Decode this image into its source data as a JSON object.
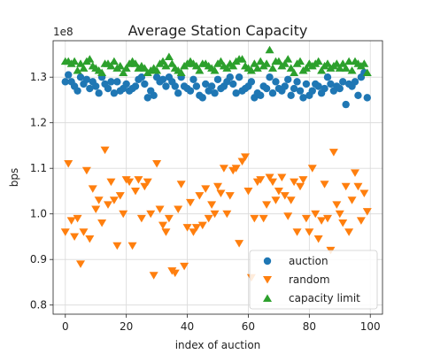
{
  "chart_data": {
    "type": "scatter",
    "title": "Average Station Capacity",
    "xlabel": "index of auction",
    "ylabel": "bps",
    "y_offset_label": "1e8",
    "xlim": [
      -4,
      104
    ],
    "ylim": [
      78000000.0,
      138000000.0
    ],
    "x_ticks": [
      0,
      20,
      40,
      60,
      80,
      100
    ],
    "x_tick_labels": [
      "0",
      "20",
      "40",
      "60",
      "80",
      "100"
    ],
    "y_ticks": [
      80000000.0,
      90000000.0,
      100000000.0,
      110000000.0,
      120000000.0,
      130000000.0
    ],
    "y_tick_labels": [
      "0.8",
      "0.9",
      "1.0",
      "1.1",
      "1.2",
      "1.3"
    ],
    "grid": true,
    "legend_position": "lower-right",
    "series": [
      {
        "name": "auction",
        "marker": "circle",
        "color": "#1f77b4",
        "x": [
          0,
          1,
          2,
          3,
          4,
          5,
          6,
          7,
          8,
          9,
          10,
          11,
          12,
          13,
          14,
          15,
          16,
          17,
          18,
          19,
          20,
          21,
          22,
          23,
          24,
          25,
          26,
          27,
          28,
          29,
          30,
          31,
          32,
          33,
          34,
          35,
          36,
          37,
          38,
          39,
          40,
          41,
          42,
          43,
          44,
          45,
          46,
          47,
          48,
          49,
          50,
          51,
          52,
          53,
          54,
          55,
          56,
          57,
          58,
          59,
          60,
          61,
          62,
          63,
          64,
          65,
          66,
          67,
          68,
          69,
          70,
          71,
          72,
          73,
          74,
          75,
          76,
          77,
          78,
          79,
          80,
          81,
          82,
          83,
          84,
          85,
          86,
          87,
          88,
          89,
          90,
          91,
          92,
          93,
          94,
          95,
          96,
          97,
          98,
          99
        ],
        "y": [
          129000000.0,
          130500000.0,
          129000000.0,
          128000000.0,
          127000000.0,
          130000000.0,
          128500000.0,
          129500000.0,
          127500000.0,
          129000000.0,
          128000000.0,
          126500000.0,
          130000000.0,
          128500000.0,
          127500000.0,
          129000000.0,
          126500000.0,
          129000000.0,
          127000000.0,
          127500000.0,
          128500000.0,
          127000000.0,
          127500000.0,
          128000000.0,
          129500000.0,
          130000000.0,
          128500000.0,
          125500000.0,
          127000000.0,
          126000000.0,
          130000000.0,
          129000000.0,
          129500000.0,
          128000000.0,
          130000000.0,
          129000000.0,
          128000000.0,
          126500000.0,
          130000000.0,
          128000000.0,
          127500000.0,
          127000000.0,
          129500000.0,
          128000000.0,
          126000000.0,
          125500000.0,
          128500000.0,
          127000000.0,
          128000000.0,
          126500000.0,
          129500000.0,
          127500000.0,
          128000000.0,
          129000000.0,
          130000000.0,
          128500000.0,
          126500000.0,
          130000000.0,
          127000000.0,
          127500000.0,
          128000000.0,
          129000000.0,
          125500000.0,
          126500000.0,
          126000000.0,
          128000000.0,
          127500000.0,
          130000000.0,
          126500000.0,
          129000000.0,
          127500000.0,
          127000000.0,
          128000000.0,
          129500000.0,
          126000000.0,
          127500000.0,
          129000000.0,
          127000000.0,
          125500000.0,
          128500000.0,
          126000000.0,
          127000000.0,
          128500000.0,
          128000000.0,
          126500000.0,
          127500000.0,
          130000000.0,
          128500000.0,
          127000000.0,
          128000000.0,
          127500000.0,
          129000000.0,
          124000000.0,
          128500000.0,
          128000000.0,
          129000000.0,
          126000000.0,
          130000000.0,
          131000000.0,
          125500000.0
        ]
      },
      {
        "name": "random",
        "marker": "triangle-down",
        "color": "#ff7f0e",
        "x": [
          0,
          1,
          2,
          3,
          4,
          5,
          6,
          7,
          8,
          9,
          10,
          11,
          12,
          13,
          14,
          15,
          16,
          17,
          18,
          19,
          20,
          21,
          22,
          23,
          24,
          25,
          26,
          27,
          28,
          29,
          30,
          31,
          32,
          33,
          34,
          35,
          36,
          37,
          38,
          39,
          40,
          41,
          42,
          43,
          44,
          45,
          46,
          47,
          48,
          49,
          50,
          51,
          52,
          53,
          54,
          55,
          56,
          57,
          58,
          59,
          60,
          61,
          62,
          63,
          64,
          65,
          66,
          67,
          68,
          69,
          70,
          71,
          72,
          73,
          74,
          75,
          76,
          77,
          78,
          79,
          80,
          81,
          82,
          83,
          84,
          85,
          86,
          87,
          88,
          89,
          90,
          91,
          92,
          93,
          94,
          95,
          96,
          97,
          98,
          99
        ],
        "y": [
          96000000.0,
          111000000.0,
          98500000.0,
          95000000.0,
          99000000.0,
          89000000.0,
          96000000.0,
          109500000.0,
          94500000.0,
          105500000.0,
          101000000.0,
          103000000.0,
          98000000.0,
          114000000.0,
          102000000.0,
          107000000.0,
          103000000.0,
          93000000.0,
          104000000.0,
          100000000.0,
          107500000.0,
          107000000.0,
          93000000.0,
          105000000.0,
          107500000.0,
          99000000.0,
          106000000.0,
          107000000.0,
          100000000.0,
          86500000.0,
          111000000.0,
          101000000.0,
          97500000.0,
          96000000.0,
          99000000.0,
          87500000.0,
          87000000.0,
          101000000.0,
          106500000.0,
          88500000.0,
          97000000.0,
          102500000.0,
          96000000.0,
          97000000.0,
          104000000.0,
          97500000.0,
          105500000.0,
          99000000.0,
          102000000.0,
          100000000.0,
          106000000.0,
          104500000.0,
          110000000.0,
          100000000.0,
          104000000.0,
          109500000.0,
          110000000.0,
          93500000.0,
          111500000.0,
          112500000.0,
          105000000.0,
          86000000.0,
          99000000.0,
          107000000.0,
          107500000.0,
          99000000.0,
          102000000.0,
          108000000.0,
          107000000.0,
          103000000.0,
          105000000.0,
          108000000.0,
          104000000.0,
          99500000.0,
          103000000.0,
          107000000.0,
          96000000.0,
          106000000.0,
          107500000.0,
          99000000.0,
          96000000.0,
          110000000.0,
          100000000.0,
          94500000.0,
          98500000.0,
          106500000.0,
          99000000.0,
          92000000.0,
          113500000.0,
          102000000.0,
          100000000.0,
          98000000.0,
          106000000.0,
          96000000.0,
          103000000.0,
          109000000.0,
          106000000.0,
          98500000.0,
          104500000.0,
          100500000.0
        ]
      },
      {
        "name": "capacity limit",
        "marker": "triangle-up",
        "color": "#2ca02c",
        "x": [
          0,
          1,
          2,
          3,
          4,
          5,
          6,
          7,
          8,
          9,
          10,
          11,
          12,
          13,
          14,
          15,
          16,
          17,
          18,
          19,
          20,
          21,
          22,
          23,
          24,
          25,
          26,
          27,
          28,
          29,
          30,
          31,
          32,
          33,
          34,
          35,
          36,
          37,
          38,
          39,
          40,
          41,
          42,
          43,
          44,
          45,
          46,
          47,
          48,
          49,
          50,
          51,
          52,
          53,
          54,
          55,
          56,
          57,
          58,
          59,
          60,
          61,
          62,
          63,
          64,
          65,
          66,
          67,
          68,
          69,
          70,
          71,
          72,
          73,
          74,
          75,
          76,
          77,
          78,
          79,
          80,
          81,
          82,
          83,
          84,
          85,
          86,
          87,
          88,
          89,
          90,
          91,
          92,
          93,
          94,
          95,
          96,
          97,
          98,
          99
        ],
        "y": [
          133500000.0,
          133500000.0,
          133000000.0,
          133500000.0,
          131500000.0,
          133000000.0,
          132000000.0,
          133500000.0,
          134000000.0,
          132500000.0,
          132000000.0,
          131500000.0,
          131000000.0,
          133000000.0,
          133000000.0,
          132500000.0,
          133500000.0,
          132000000.0,
          132500000.0,
          131000000.0,
          132000000.0,
          133000000.0,
          133500000.0,
          133000000.0,
          132000000.0,
          132500000.0,
          132000000.0,
          131000000.0,
          131500000.0,
          132000000.0,
          131500000.0,
          133000000.0,
          133500000.0,
          132500000.0,
          134500000.0,
          133000000.0,
          132000000.0,
          131500000.0,
          131000000.0,
          132500000.0,
          133000000.0,
          133500000.0,
          133000000.0,
          132500000.0,
          131500000.0,
          133000000.0,
          133000000.0,
          132500000.0,
          132000000.0,
          131500000.0,
          133000000.0,
          133500000.0,
          132500000.0,
          132000000.0,
          133000000.0,
          132500000.0,
          133500000.0,
          134000000.0,
          134000000.0,
          132500000.0,
          132000000.0,
          131500000.0,
          133000000.0,
          132000000.0,
          133500000.0,
          132500000.0,
          133000000.0,
          136000000.0,
          132000000.0,
          133500000.0,
          133500000.0,
          132500000.0,
          133000000.0,
          134000000.0,
          132000000.0,
          131000000.0,
          133000000.0,
          133500000.0,
          131500000.0,
          132000000.0,
          133000000.0,
          132500000.0,
          133000000.0,
          133500000.0,
          131500000.0,
          132500000.0,
          133000000.0,
          132000000.0,
          132500000.0,
          133000000.0,
          132000000.0,
          133000000.0,
          132000000.0,
          133500000.0,
          131500000.0,
          133500000.0,
          133000000.0,
          132500000.0,
          133000000.0,
          131000000.0
        ]
      }
    ]
  }
}
